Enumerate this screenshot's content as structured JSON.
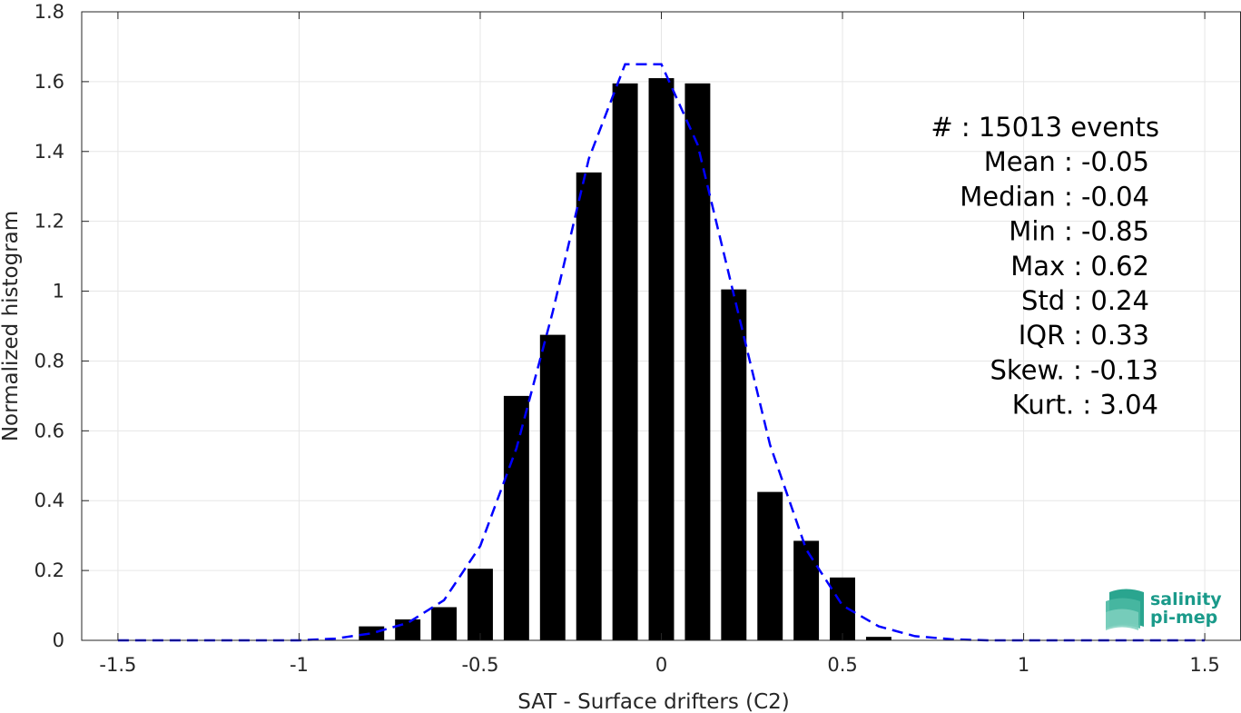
{
  "chart_data": {
    "type": "bar",
    "xlabel": "SAT - Surface drifters (C2)",
    "ylabel": "Normalized histogram",
    "xlim": [
      -1.6,
      1.6
    ],
    "ylim": [
      0,
      1.8
    ],
    "grid": true,
    "x_ticks": [
      -1.5,
      -1,
      -0.5,
      0,
      0.5,
      1,
      1.5
    ],
    "x_tick_labels": [
      "-1.5",
      "-1",
      "-0.5",
      "0",
      "0.5",
      "1",
      "1.5"
    ],
    "y_ticks": [
      0,
      0.2,
      0.4,
      0.6,
      0.8,
      1,
      1.2,
      1.4,
      1.6,
      1.8
    ],
    "y_tick_labels": [
      "0",
      "0.2",
      "0.4",
      "0.6",
      "0.8",
      "1",
      "1.2",
      "1.4",
      "1.6",
      "1.8"
    ],
    "bar_width": 0.07,
    "bar_color": "#000000",
    "bars": {
      "x": [
        -0.8,
        -0.7,
        -0.6,
        -0.5,
        -0.4,
        -0.3,
        -0.2,
        -0.1,
        0.0,
        0.1,
        0.2,
        0.3,
        0.4,
        0.5,
        0.6
      ],
      "values": [
        0.04,
        0.06,
        0.095,
        0.205,
        0.7,
        0.875,
        1.34,
        1.595,
        1.61,
        1.595,
        1.005,
        0.425,
        0.285,
        0.18,
        0.01
      ]
    },
    "fit_curve": {
      "style": "dashed",
      "color": "#0000ff",
      "x": [
        -1.5,
        -1.4,
        -1.3,
        -1.2,
        -1.1,
        -1.0,
        -0.9,
        -0.8,
        -0.7,
        -0.6,
        -0.5,
        -0.4,
        -0.3,
        -0.2,
        -0.1,
        0.0,
        0.1,
        0.2,
        0.3,
        0.4,
        0.5,
        0.6,
        0.7,
        0.8,
        0.9,
        1.0,
        1.1,
        1.2,
        1.3,
        1.4,
        1.5
      ],
      "values": [
        0,
        0,
        0,
        0,
        0,
        0,
        0.005,
        0.02,
        0.05,
        0.115,
        0.27,
        0.55,
        0.94,
        1.38,
        1.65,
        1.65,
        1.42,
        0.99,
        0.56,
        0.26,
        0.1,
        0.04,
        0.012,
        0.003,
        0,
        0,
        0,
        0,
        0,
        0,
        0
      ]
    },
    "annotations": [
      {
        "label": "#  :",
        "value": "15013 events"
      },
      {
        "label": "Mean :",
        "value": "-0.05"
      },
      {
        "label": "Median :",
        "value": "-0.04"
      },
      {
        "label": "Min :",
        "value": "-0.85"
      },
      {
        "label": "Max :",
        "value": "0.62"
      },
      {
        "label": "Std :",
        "value": "0.24"
      },
      {
        "label": "IQR :",
        "value": "0.33"
      },
      {
        "label": "Skew. :",
        "value": "-0.13"
      },
      {
        "label": "Kurt. :",
        "value": "3.04"
      }
    ]
  },
  "logo": {
    "line1": "salinity",
    "line2": "pi-mep",
    "color": "#1a9a8a"
  }
}
